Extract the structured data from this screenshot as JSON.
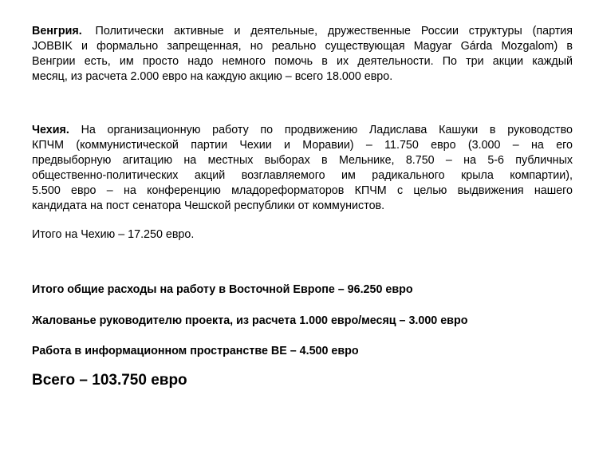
{
  "page": {
    "background": "#ffffff",
    "text_color": "#000000"
  },
  "paragraphs": {
    "hungary": {
      "lead": "Венгрия.",
      "lines": [
        " Политически активные и деятельные, дружественные России структуры (партия",
        "JOBBIK и формально запрещенная, но реально существующая Magyar Gárda Mozgalom) в",
        "Венгрии есть, им просто надо немного помочь в их деятельности. По три акции каждый",
        "месяц, из расчета 2.000 евро на каждую акцию – всего 18.000 евро."
      ]
    },
    "czech": {
      "lead": "Чехия.",
      "lines": [
        " На организационную работу по продвижению Ладислава Кашуки в руководство",
        "КПЧМ (коммунистической партии Чехии и Моравии) – 11.750 евро (3.000 – на его",
        "предвыборную агитацию на местных выборах в Мельнике, 8.750 – на 5-6 публичных",
        "общественно-политических акций возглавляемого им радикального крыла компартии),",
        "5.500 евро – на конференцию младореформаторов КПЧМ с целью выдвижения нашего",
        "кандидата на пост сенатора Чешской республики от коммунистов."
      ]
    },
    "czech_total": "Итого на Чехию – 17.250 евро."
  },
  "summary": {
    "eastern_europe_total": "Итого общие расходы на работу в Восточной Европе – 96.250 евро",
    "manager_salary": "Жалованье руководителю проекта, из расчета 1.000 евро/месяц – 3.000 евро",
    "information_space": "Работа в информационном пространстве ВЕ – 4.500 евро",
    "grand_total": "Всего – 103.750 евро"
  }
}
